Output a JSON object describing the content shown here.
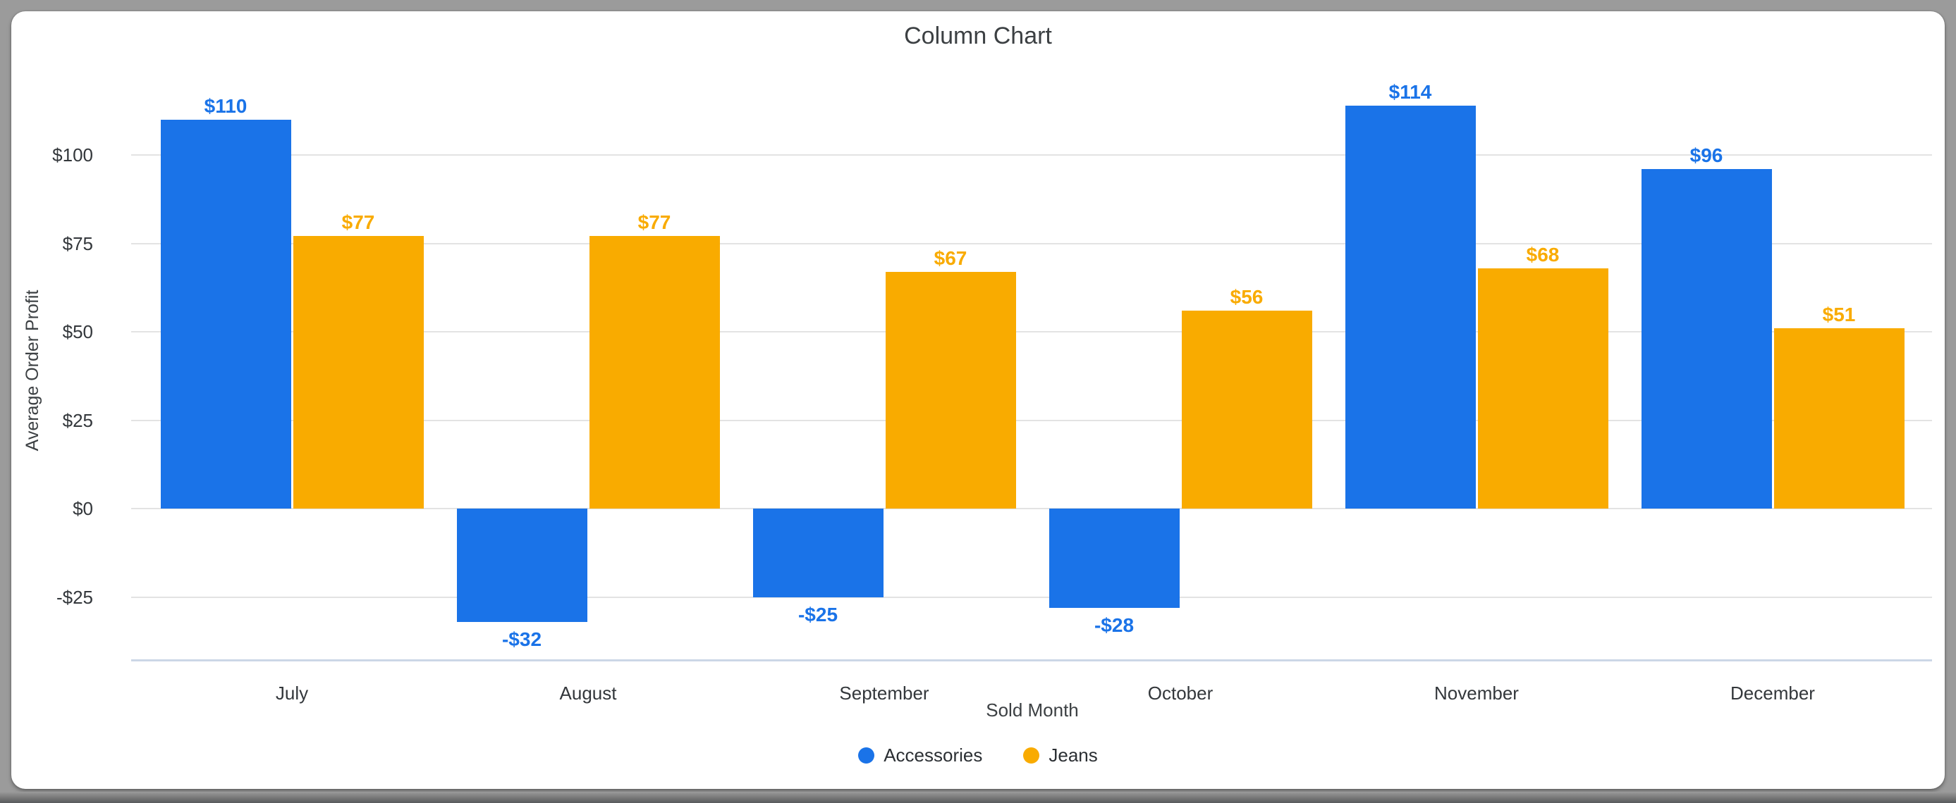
{
  "window": {
    "background_color": "#9b9b9b",
    "card_background_color": "#ffffff"
  },
  "title": "Column Chart",
  "chart_data": {
    "type": "bar",
    "title": "Column Chart",
    "categories": [
      "July",
      "August",
      "September",
      "October",
      "November",
      "December"
    ],
    "series": [
      {
        "name": "Accessories",
        "color": "#1a73e8",
        "values": [
          110,
          -32,
          -25,
          -28,
          114,
          96
        ],
        "labels": [
          "$110",
          "-$32",
          "-$25",
          "-$28",
          "$114",
          "$96"
        ]
      },
      {
        "name": "Jeans",
        "color": "#f9ab00",
        "values": [
          77,
          77,
          67,
          56,
          68,
          51
        ],
        "labels": [
          "$77",
          "$77",
          "$67",
          "$56",
          "$68",
          "$51"
        ]
      }
    ],
    "xlabel": "Sold Month",
    "ylabel": "Average Order Profit",
    "y_ticks": [
      {
        "value": 100,
        "label": "$100"
      },
      {
        "value": 75,
        "label": "$75"
      },
      {
        "value": 50,
        "label": "$50"
      },
      {
        "value": 25,
        "label": "$25"
      },
      {
        "value": 0,
        "label": "$0"
      },
      {
        "value": -25,
        "label": "-$25"
      }
    ],
    "ylim": [
      -43,
      123
    ],
    "grid": true,
    "legend_position": "bottom-center",
    "colors": {
      "gridline": "#e3e3e3",
      "axis_line": "#ccd7e6",
      "text": "#3c4043"
    }
  }
}
